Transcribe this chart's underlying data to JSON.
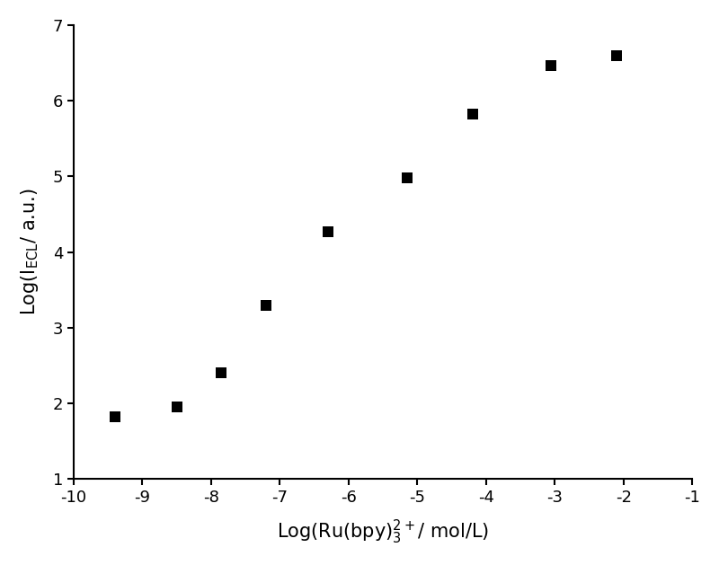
{
  "x": [
    -9.4,
    -8.5,
    -7.85,
    -7.2,
    -6.3,
    -5.15,
    -4.2,
    -3.05,
    -2.1
  ],
  "y": [
    1.82,
    1.95,
    2.4,
    3.3,
    4.27,
    4.98,
    5.82,
    6.46,
    6.6
  ],
  "xlabel": "Log(Ru(bpy)$_3^{2+}$/ mol/L)",
  "ylabel": "Log(I$_\\mathrm{ECL}$/ a.u.)",
  "xlim": [
    -10,
    -1
  ],
  "ylim": [
    1,
    7
  ],
  "xticks": [
    -10,
    -9,
    -8,
    -7,
    -6,
    -5,
    -4,
    -3,
    -2,
    -1
  ],
  "yticks": [
    1,
    2,
    3,
    4,
    5,
    6,
    7
  ],
  "marker_color": "black",
  "marker": "s",
  "marker_size": 8,
  "background_color": "#ffffff"
}
